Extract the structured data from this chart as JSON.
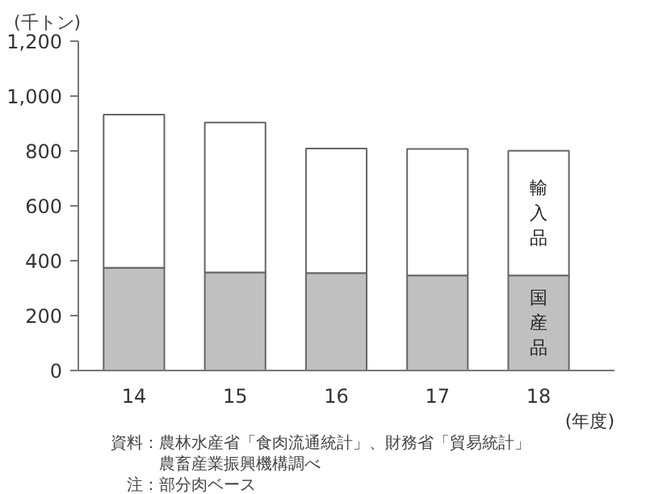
{
  "chart_data": {
    "type": "bar",
    "stacked": true,
    "categories": [
      "14",
      "15",
      "16",
      "17",
      "18"
    ],
    "series": [
      {
        "name": "国産品",
        "color": "#c0c0c0",
        "values": [
          374,
          357,
          355,
          346,
          346
        ]
      },
      {
        "name": "輸入品",
        "color": "#ffffff",
        "values": [
          558,
          547,
          454,
          461,
          455
        ]
      }
    ],
    "ylim": [
      0,
      1200
    ],
    "yticks": [
      0,
      200,
      400,
      600,
      800,
      {
        "value": 1000,
        "label": "1,000"
      },
      {
        "value": 1200,
        "label": "1,200"
      }
    ],
    "ylabel": "(千トン)",
    "xlabel": "(年度)",
    "grid": false,
    "annotations": [
      "資料：農林水産省「食肉流通統計」、財務省「貿易統計」",
      "　　　農畜産業振興機構調べ",
      "　注：部分肉ベース"
    ]
  }
}
